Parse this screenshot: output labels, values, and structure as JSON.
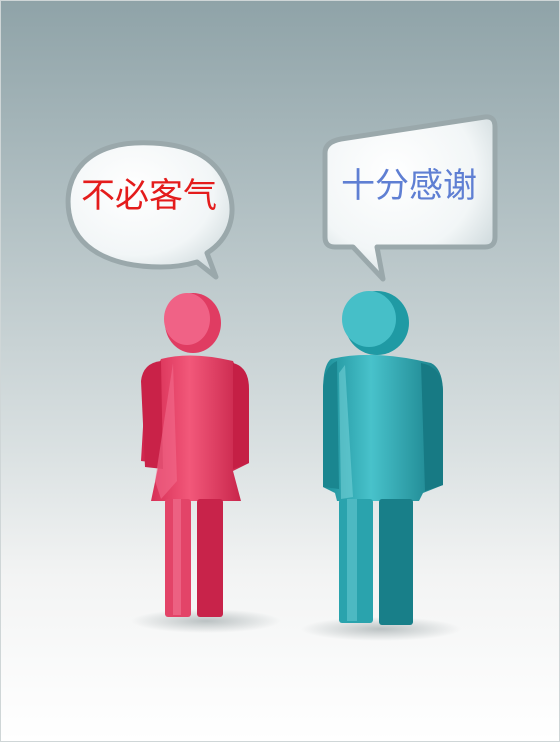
{
  "speech": {
    "left_bubble": "不必客气",
    "right_bubble": "十分感谢"
  },
  "colors": {
    "left_text": "#e41c1c",
    "right_text": "#5f7fd3",
    "female_figure": "#e8486a",
    "male_figure": "#2ea9b3"
  }
}
